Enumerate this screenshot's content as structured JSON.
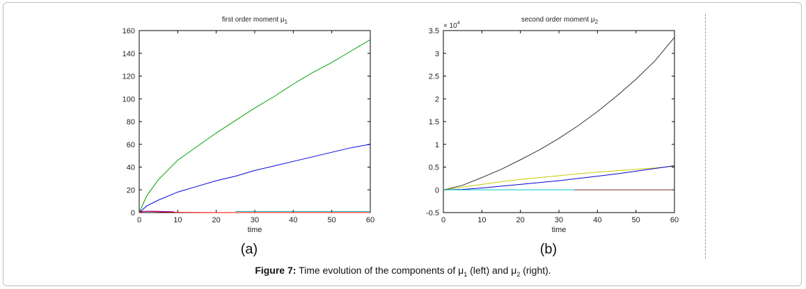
{
  "caption": {
    "figure_label": "Figure 7:",
    "text_before_mu1": " Time evolution of the components of μ",
    "sub1": "1",
    "text_middle": " (left) and μ",
    "sub2": "2",
    "text_after": " (right)."
  },
  "chart_data": [
    {
      "type": "line",
      "title": "first order moment μ",
      "title_subscript": "1",
      "xlabel": "time",
      "ylabel": "",
      "xlim": [
        0,
        60
      ],
      "ylim": [
        0,
        160
      ],
      "xticks": [
        0,
        10,
        20,
        30,
        40,
        50,
        60
      ],
      "yticks": [
        0,
        20,
        40,
        60,
        80,
        100,
        120,
        140,
        160
      ],
      "panel_label": "(a)",
      "grid": false,
      "series": [
        {
          "color": "#00a000",
          "x": [
            0,
            2,
            5,
            10,
            15,
            20,
            25,
            30,
            35,
            40,
            45,
            50,
            55,
            60
          ],
          "y": [
            0,
            15,
            29,
            46,
            58,
            70,
            81,
            92,
            102,
            113,
            123,
            132,
            142,
            152
          ]
        },
        {
          "color": "#0000e0",
          "x": [
            0,
            2,
            5,
            10,
            15,
            20,
            25,
            30,
            35,
            40,
            45,
            50,
            55,
            60
          ],
          "y": [
            0,
            6,
            11,
            18,
            23,
            28,
            32,
            37,
            41,
            45,
            49,
            53,
            57,
            60
          ]
        },
        {
          "color": "#ff0000",
          "x": [
            0,
            1,
            3,
            6,
            9,
            12,
            20,
            60
          ],
          "y": [
            0,
            1,
            1,
            0.6,
            0.3,
            0.1,
            0,
            0
          ]
        },
        {
          "color": "#00aaaa",
          "x": [
            25,
            60
          ],
          "y": [
            1,
            1
          ]
        },
        {
          "color": "#a000a0",
          "x": [
            0,
            3,
            6,
            9
          ],
          "y": [
            1,
            1.2,
            1,
            0.8
          ]
        }
      ]
    },
    {
      "type": "line",
      "title": "second order moment μ",
      "title_subscript": "2",
      "xlabel": "time",
      "ylabel": "",
      "y_multiplier": "× 10",
      "y_multiplier_exp": "4",
      "xlim": [
        0,
        60
      ],
      "ylim": [
        -0.5,
        3.5
      ],
      "xticks": [
        0,
        10,
        20,
        30,
        40,
        50,
        60
      ],
      "yticks": [
        -0.5,
        0,
        0.5,
        1,
        1.5,
        2,
        2.5,
        3,
        3.5
      ],
      "panel_label": "(b)",
      "grid": false,
      "series": [
        {
          "color": "#303030",
          "x": [
            0,
            5,
            10,
            15,
            20,
            25,
            30,
            35,
            40,
            45,
            50,
            55,
            60
          ],
          "y": [
            0,
            0.1,
            0.27,
            0.45,
            0.66,
            0.88,
            1.13,
            1.41,
            1.72,
            2.06,
            2.43,
            2.84,
            3.35
          ]
        },
        {
          "color": "#c8c800",
          "x": [
            0,
            5,
            10,
            15,
            20,
            25,
            30,
            35,
            40,
            45,
            50,
            55,
            60
          ],
          "y": [
            0,
            0.06,
            0.12,
            0.18,
            0.23,
            0.27,
            0.31,
            0.35,
            0.39,
            0.42,
            0.45,
            0.48,
            0.52
          ]
        },
        {
          "color": "#0000d0",
          "x": [
            0,
            5,
            10,
            15,
            20,
            25,
            30,
            35,
            40,
            45,
            50,
            55,
            60
          ],
          "y": [
            0,
            0.01,
            0.04,
            0.08,
            0.12,
            0.16,
            0.2,
            0.25,
            0.3,
            0.35,
            0.41,
            0.47,
            0.53
          ]
        },
        {
          "color": "#00c8c8",
          "x": [
            0,
            34
          ],
          "y": [
            0,
            0
          ]
        },
        {
          "color": "#803030",
          "x": [
            34,
            60
          ],
          "y": [
            0,
            0
          ]
        }
      ]
    }
  ]
}
